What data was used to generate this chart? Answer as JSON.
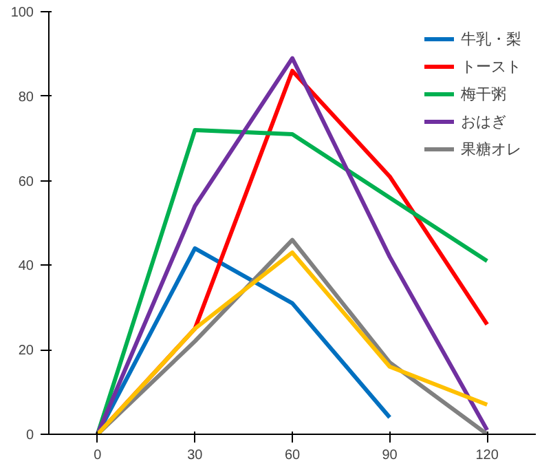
{
  "chart_data": {
    "type": "line",
    "categories": [
      "0",
      "30",
      "60",
      "90",
      "120"
    ],
    "series": [
      {
        "name": "牛乳・梨",
        "color": "#0070c0",
        "values": [
          0,
          44,
          31,
          4,
          null
        ]
      },
      {
        "name": "トースト",
        "color": "#ff0000",
        "values": [
          0,
          25,
          86,
          61,
          26
        ]
      },
      {
        "name": "梅干粥",
        "color": "#00b050",
        "values": [
          0,
          72,
          71,
          56,
          41
        ]
      },
      {
        "name": "おはぎ",
        "color": "#7030a0",
        "values": [
          0,
          54,
          89,
          42,
          1
        ]
      },
      {
        "name": "果糖オレ",
        "color": "#808080",
        "values": [
          0,
          22,
          46,
          17,
          0
        ]
      },
      {
        "color": "#ffc000",
        "values": [
          0,
          25,
          43,
          16,
          7
        ]
      }
    ],
    "ylim": [
      0,
      100
    ],
    "yticks": [
      0,
      20,
      40,
      60,
      80,
      100
    ],
    "grid": false,
    "legend": "top right",
    "marker": "none",
    "line_style": "solid"
  }
}
